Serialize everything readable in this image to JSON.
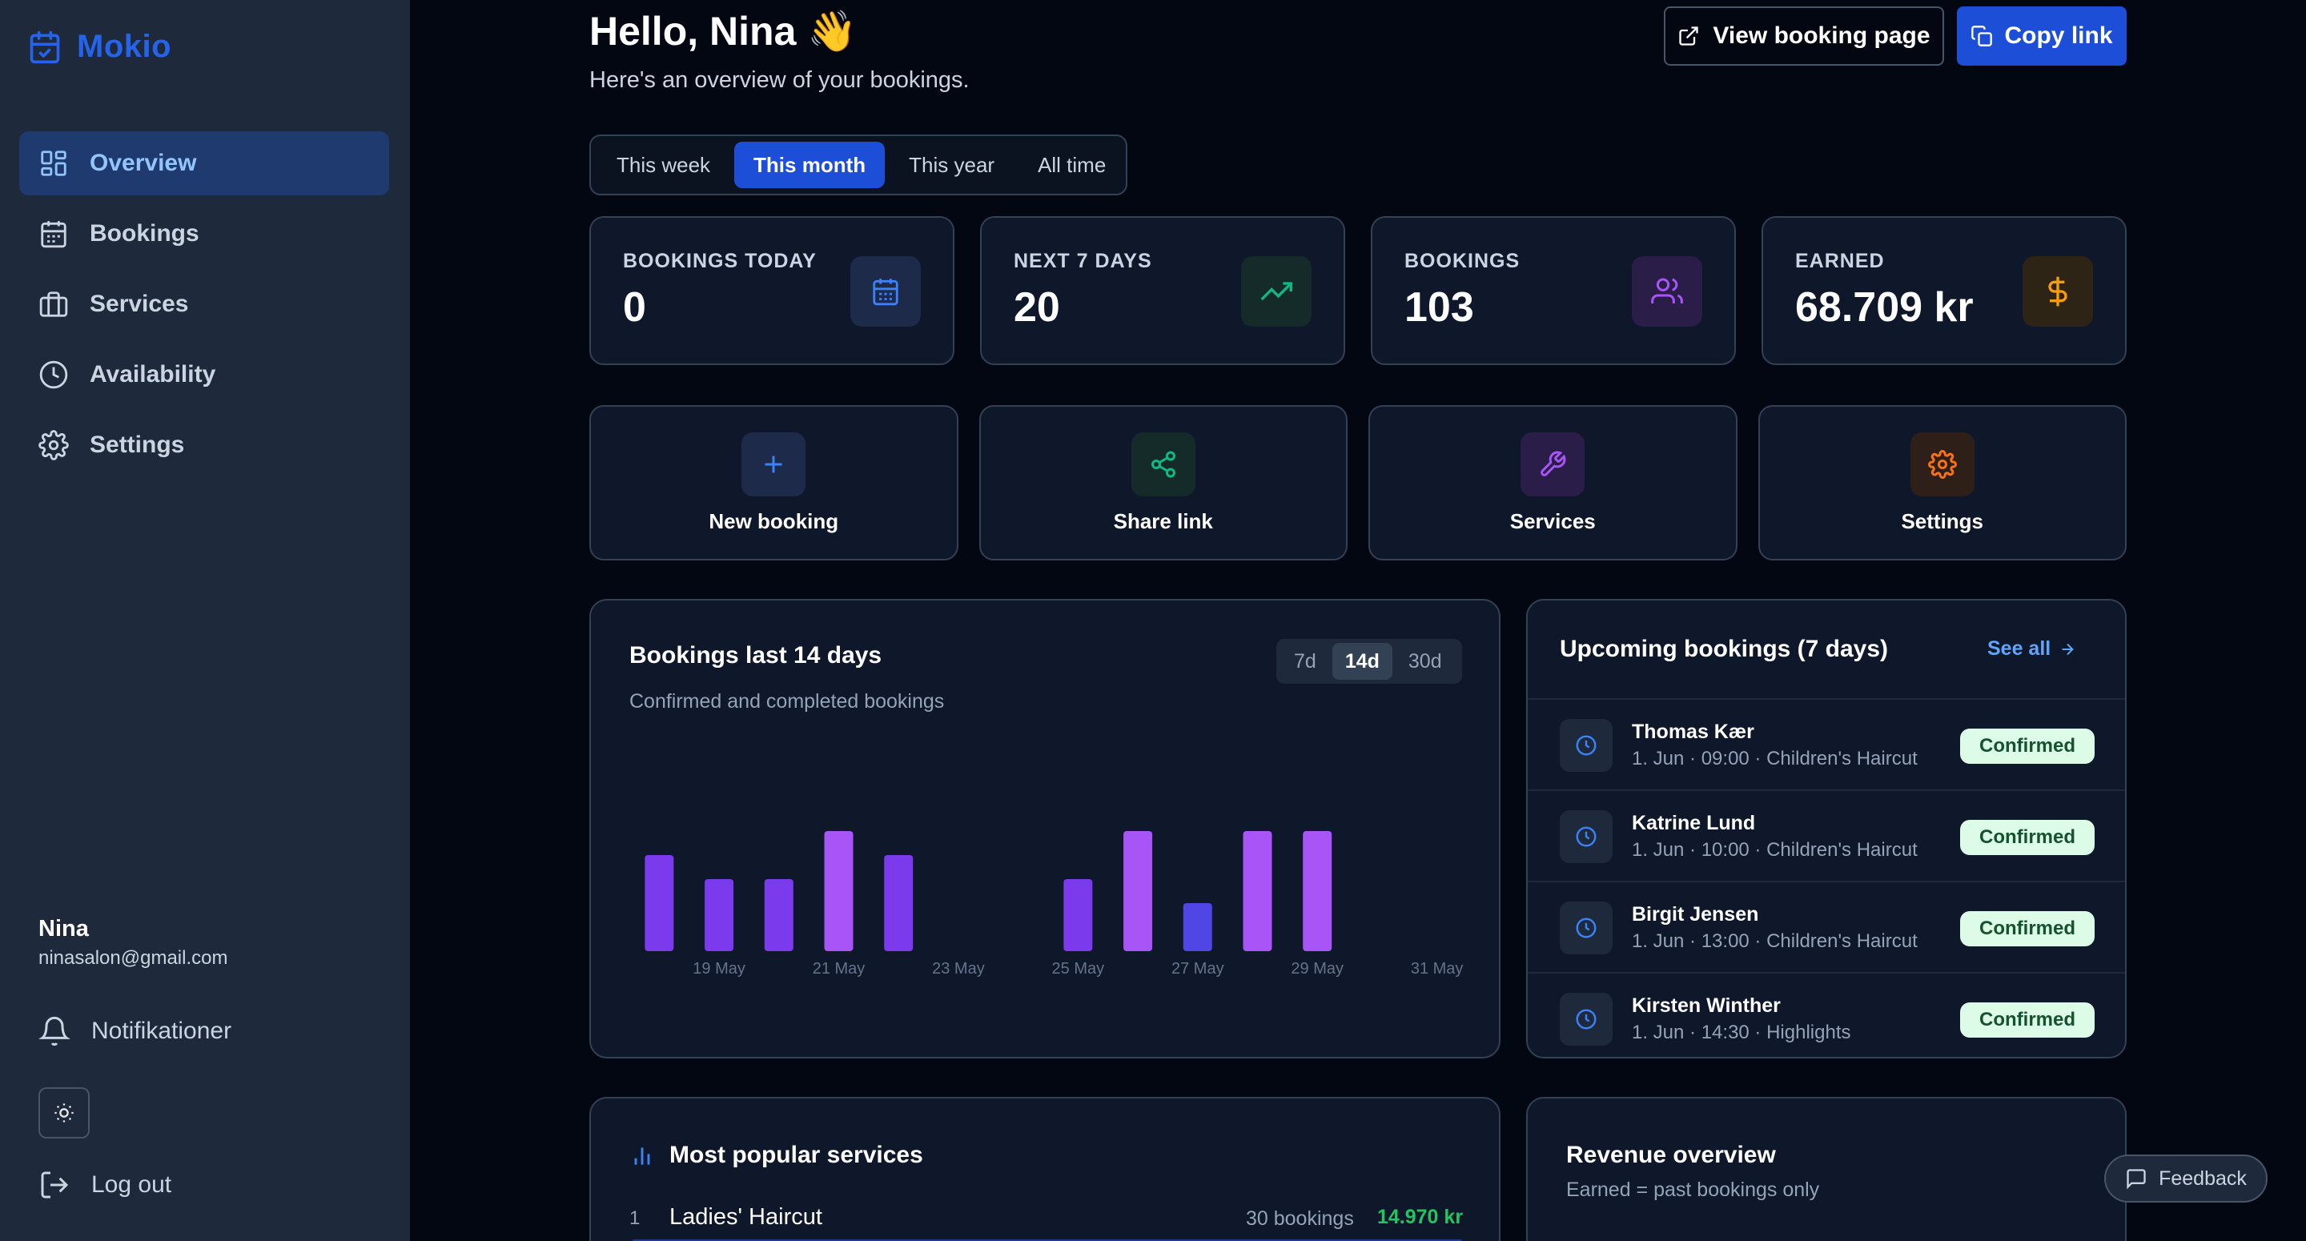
{
  "app": {
    "name": "Mokio",
    "brand_color": "#2563eb"
  },
  "sidebar": {
    "items": [
      {
        "label": "Overview",
        "icon": "dashboard-icon",
        "active": true
      },
      {
        "label": "Bookings",
        "icon": "calendar-icon"
      },
      {
        "label": "Services",
        "icon": "briefcase-icon"
      },
      {
        "label": "Availability",
        "icon": "clock-icon"
      },
      {
        "label": "Settings",
        "icon": "gear-icon"
      }
    ],
    "user": {
      "name": "Nina",
      "email": "ninasalon@gmail.com"
    },
    "notifications_label": "Notifikationer",
    "logout_label": "Log out"
  },
  "header": {
    "greeting": "Hello, Nina 👋",
    "subtitle": "Here's an overview of your bookings.",
    "view_booking_label": "View booking page",
    "copy_link_label": "Copy link"
  },
  "range_tabs": [
    {
      "label": "This week"
    },
    {
      "label": "This month",
      "active": true
    },
    {
      "label": "This year"
    },
    {
      "label": "All time"
    }
  ],
  "stats": [
    {
      "label": "BOOKINGS TODAY",
      "value": "0",
      "icon": "calendar-icon",
      "color": "#3b82f6"
    },
    {
      "label": "NEXT 7 DAYS",
      "value": "20",
      "icon": "trending-up-icon",
      "color": "#10b981"
    },
    {
      "label": "BOOKINGS",
      "value": "103",
      "icon": "users-icon",
      "color": "#a855f7"
    },
    {
      "label": "EARNED",
      "value": "68.709 kr",
      "icon": "dollar-icon",
      "color": "#f59e0b"
    }
  ],
  "actions": [
    {
      "label": "New booking",
      "icon": "plus-icon",
      "color": "#3b82f6"
    },
    {
      "label": "Share link",
      "icon": "share-icon",
      "color": "#10b981"
    },
    {
      "label": "Services",
      "icon": "wrench-icon",
      "color": "#a855f7"
    },
    {
      "label": "Settings",
      "icon": "gear-icon",
      "color": "#f97316"
    }
  ],
  "chart": {
    "title": "Bookings last 14 days",
    "subtitle": "Confirmed and completed bookings",
    "periods": [
      {
        "label": "7d"
      },
      {
        "label": "14d",
        "active": true
      },
      {
        "label": "30d"
      }
    ]
  },
  "chart_data": {
    "type": "bar",
    "categories": [
      "18 May",
      "19 May",
      "20 May",
      "21 May",
      "22 May",
      "23 May",
      "24 May",
      "25 May",
      "26 May",
      "27 May",
      "28 May",
      "29 May",
      "30 May",
      "31 May"
    ],
    "values": [
      4,
      3,
      3,
      5,
      4,
      0,
      0,
      3,
      5,
      2,
      5,
      5,
      0,
      0
    ],
    "tick_labels": [
      "19 May",
      "21 May",
      "23 May",
      "25 May",
      "27 May",
      "29 May",
      "31 May"
    ],
    "ylim": [
      0,
      5
    ],
    "grid": false,
    "colors": [
      "#7c3aed",
      "#7c3aed",
      "#7c3aed",
      "#a855f7",
      "#7c3aed",
      "#7c3aed",
      "#7c3aed",
      "#7c3aed",
      "#a855f7",
      "#4f46e5",
      "#a855f7",
      "#a855f7",
      "#7c3aed",
      "#7c3aed"
    ]
  },
  "upcoming": {
    "title": "Upcoming bookings (7 days)",
    "see_all_label": "See all",
    "items": [
      {
        "name": "Thomas Kær",
        "meta": "1. Jun · 09:00 · Children's Haircut",
        "status": "Confirmed"
      },
      {
        "name": "Katrine Lund",
        "meta": "1. Jun · 10:00 · Children's Haircut",
        "status": "Confirmed"
      },
      {
        "name": "Birgit Jensen",
        "meta": "1. Jun · 13:00 · Children's Haircut",
        "status": "Confirmed"
      },
      {
        "name": "Kirsten Winther",
        "meta": "1. Jun · 14:30 · Highlights",
        "status": "Confirmed"
      }
    ]
  },
  "popular": {
    "title": "Most popular services",
    "items": [
      {
        "rank": "1",
        "name": "Ladies' Haircut",
        "count": "30 bookings",
        "amount": "14.970 kr"
      }
    ]
  },
  "revenue": {
    "title": "Revenue overview",
    "subtitle": "Earned = past bookings only"
  },
  "feedback_label": "Feedback"
}
